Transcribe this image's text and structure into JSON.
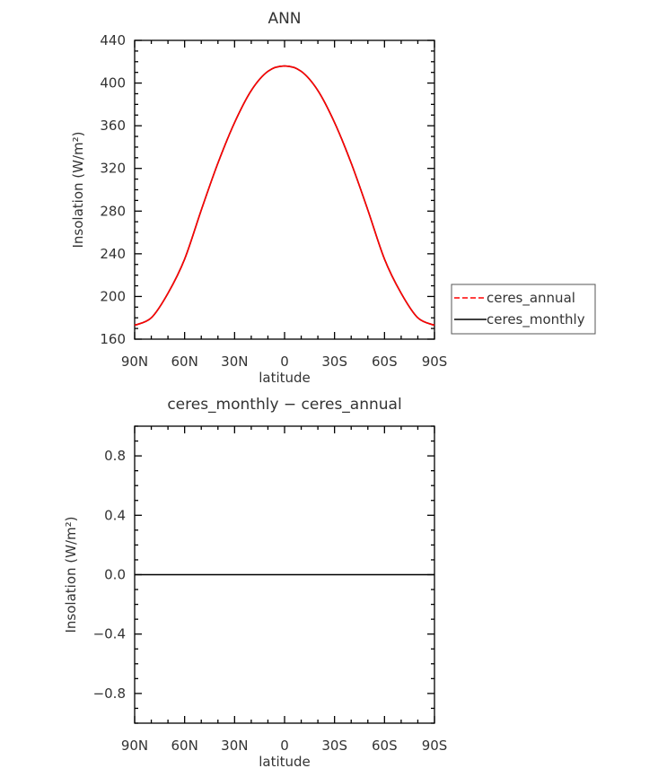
{
  "chart_data": [
    {
      "type": "line",
      "title": "ANN",
      "xlabel": "latitude",
      "ylabel": "Insolation (W/m²)",
      "xlim": [
        90,
        -90
      ],
      "ylim": [
        160,
        440
      ],
      "xticks": [
        90,
        60,
        30,
        0,
        -30,
        -60,
        -90
      ],
      "xtick_labels": [
        "90N",
        "60N",
        "30N",
        "0",
        "30S",
        "60S",
        "90S"
      ],
      "yticks": [
        160,
        200,
        240,
        280,
        320,
        360,
        400,
        440
      ],
      "ytick_labels": [
        "160",
        "200",
        "240",
        "280",
        "320",
        "360",
        "400",
        "440"
      ],
      "grid": false,
      "legend_placement": "right",
      "x": [
        90,
        80,
        70,
        60,
        50,
        40,
        30,
        20,
        10,
        0,
        -10,
        -20,
        -30,
        -40,
        -50,
        -60,
        -70,
        -80,
        -90
      ],
      "series": [
        {
          "name": "ceres_annual",
          "color": "#ff0000",
          "dash": "dashed",
          "values": [
            173,
            180,
            203,
            235,
            281,
            325,
            363,
            393,
            411,
            416,
            411,
            393,
            363,
            325,
            281,
            235,
            203,
            180,
            173
          ]
        },
        {
          "name": "ceres_monthly",
          "color": "#000000",
          "dash": "solid",
          "values": [
            173,
            180,
            203,
            235,
            281,
            325,
            363,
            393,
            411,
            416,
            411,
            393,
            363,
            325,
            281,
            235,
            203,
            180,
            173
          ]
        }
      ]
    },
    {
      "type": "line",
      "title": "ceres_monthly − ceres_annual",
      "xlabel": "latitude",
      "ylabel": "Insolation (W/m²)",
      "xlim": [
        90,
        -90
      ],
      "ylim": [
        -1,
        1
      ],
      "xticks": [
        90,
        60,
        30,
        0,
        -30,
        -60,
        -90
      ],
      "xtick_labels": [
        "90N",
        "60N",
        "30N",
        "0",
        "30S",
        "60S",
        "90S"
      ],
      "yticks": [
        -0.8,
        -0.4,
        0.0,
        0.4,
        0.8
      ],
      "ytick_labels": [
        "−0.8",
        "−0.4",
        "0.0",
        "0.4",
        "0.8"
      ],
      "grid": false,
      "x": [
        90,
        -90
      ],
      "series": [
        {
          "color": "#000000",
          "values": [
            0,
            0
          ]
        }
      ]
    }
  ]
}
